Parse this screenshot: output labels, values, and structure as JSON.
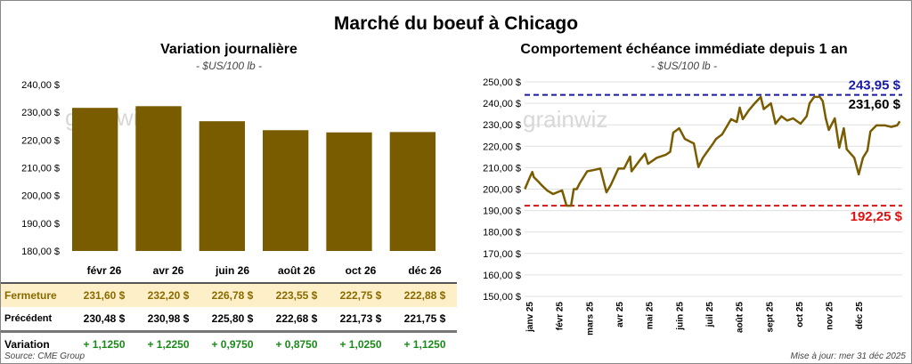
{
  "title": "Marché du boeuf à Chicago",
  "left": {
    "title": "Variation journalière",
    "unit": "- $US/100 lb -"
  },
  "right": {
    "title": "Comportement échéance immédiate depuis 1 an",
    "unit": "- $US/100 lb -"
  },
  "watermark": "grainwiz",
  "table": {
    "headers": [
      "févr 26",
      "avr 26",
      "juin 26",
      "août 26",
      "oct 26",
      "déc 26"
    ],
    "rows": [
      {
        "label": "Fermeture",
        "values": [
          "231,60  $",
          "232,20  $",
          "226,78  $",
          "223,55  $",
          "222,75  $",
          "222,88  $"
        ]
      },
      {
        "label": "Précédent",
        "values": [
          "230,48  $",
          "230,98  $",
          "225,80  $",
          "222,68  $",
          "221,73  $",
          "221,75  $"
        ]
      },
      {
        "label": "Variation",
        "values": [
          "+ 1,1250",
          "+ 1,2250",
          "+ 0,9750",
          "+ 0,8750",
          "+ 1,0250",
          "+ 1,1250"
        ]
      }
    ]
  },
  "source": "Source: CME Group",
  "updated": "Mise à jour: mer 31 déc 2025",
  "chart_data": [
    {
      "type": "bar",
      "title": "Variation journalière",
      "categories": [
        "févr 26",
        "avr 26",
        "juin 26",
        "août 26",
        "oct 26",
        "déc 26"
      ],
      "values": [
        231.6,
        232.2,
        226.78,
        223.55,
        222.75,
        222.88
      ],
      "ylim": [
        180,
        240
      ],
      "yticks": [
        "180,00 $",
        "190,00 $",
        "200,00 $",
        "210,00 $",
        "220,00 $",
        "230,00 $",
        "240,00 $"
      ],
      "color": "#7a5c00"
    },
    {
      "type": "line",
      "title": "Comportement échéance immédiate depuis 1 an",
      "ylim": [
        150,
        250
      ],
      "yticks": [
        "150,00 $",
        "160,00 $",
        "170,00 $",
        "180,00 $",
        "190,00 $",
        "200,00 $",
        "210,00 $",
        "220,00 $",
        "230,00 $",
        "240,00 $",
        "250,00 $"
      ],
      "xticks": [
        "janv 25",
        "févr 25",
        "mars 25",
        "avr 25",
        "mai 25",
        "juin 25",
        "juil 25",
        "août 25",
        "sept 25",
        "oct 25",
        "nov 25",
        "déc 25"
      ],
      "x_months": [
        -0.14,
        0.01,
        0.11,
        0.16,
        0.31,
        0.41,
        0.6,
        0.8,
        1.1,
        1.25,
        1.4,
        1.49,
        1.59,
        1.69,
        1.94,
        2.19,
        2.38,
        2.58,
        2.73,
        2.98,
        3.17,
        3.37,
        3.42,
        3.67,
        3.87,
        3.97,
        4.26,
        4.56,
        4.71,
        4.81,
        5.01,
        5.2,
        5.5,
        5.65,
        5.8,
        5.94,
        6.14,
        6.24,
        6.44,
        6.74,
        6.93,
        7.03,
        7.13,
        7.33,
        7.53,
        7.73,
        7.83,
        8.07,
        8.22,
        8.42,
        8.61,
        8.81,
        9.06,
        9.26,
        9.36,
        9.51,
        9.7,
        9.8,
        9.9,
        10,
        10.2,
        10.35,
        10.5,
        10.6,
        10.85,
        11,
        11.14,
        11.29,
        11.39,
        11.59,
        11.88,
        12.08,
        12.28,
        12.37
      ],
      "values": [
        200,
        205,
        208,
        205.6,
        203.5,
        202,
        199.4,
        197.7,
        199.4,
        192.3,
        192.3,
        200,
        200,
        202.7,
        208.3,
        209,
        209.6,
        198.5,
        202,
        209.6,
        209.6,
        215.2,
        208.3,
        213,
        216.5,
        211.8,
        214.6,
        216,
        217.4,
        226.3,
        228.4,
        223.4,
        221.3,
        210.3,
        214.6,
        217.4,
        221.3,
        223.4,
        225.5,
        232.6,
        231.3,
        238,
        232.6,
        236.7,
        240,
        243,
        237.3,
        240,
        230.5,
        234,
        232,
        233,
        230.5,
        234,
        240,
        243,
        243,
        241,
        233,
        227.6,
        233,
        219.3,
        228.4,
        218.6,
        214.6,
        206.9,
        214.6,
        218,
        226.9,
        229.7,
        229.7,
        229,
        229.7,
        231.6
      ],
      "max": {
        "value": 243.95,
        "label": "243,95 $",
        "color": "#1a1aaa"
      },
      "min": {
        "value": 192.25,
        "label": "192,25 $",
        "color": "#e01010"
      },
      "last": {
        "value": 231.6,
        "label": "231,60 $"
      },
      "color": "#7a5c00"
    }
  ]
}
